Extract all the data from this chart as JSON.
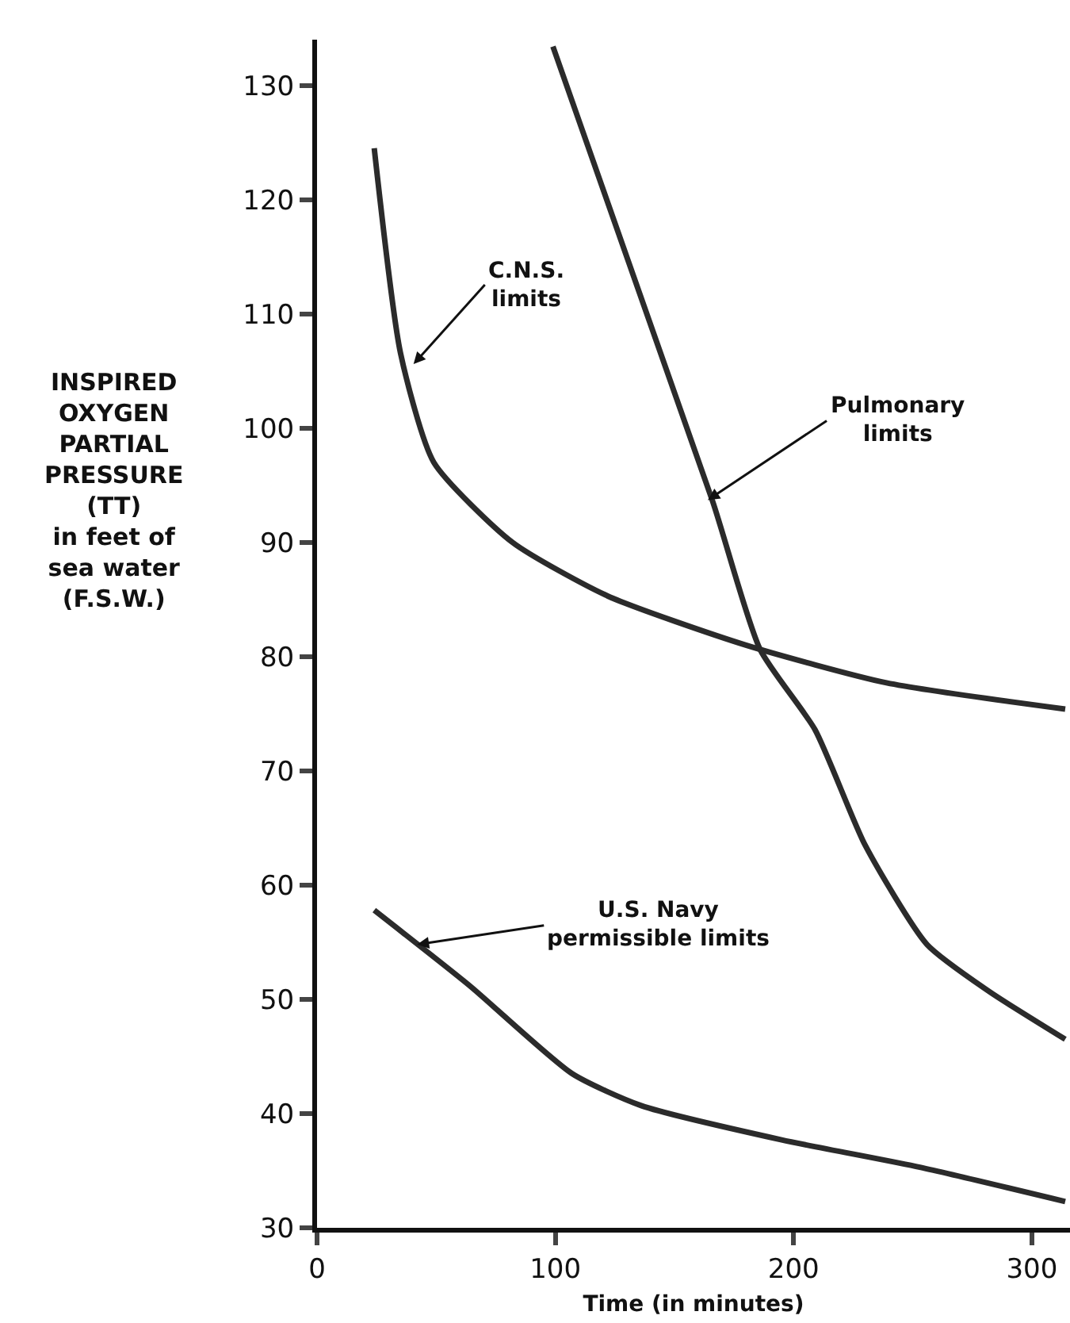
{
  "chart_data": {
    "type": "line",
    "xlabel": "Time (in minutes)",
    "ylabel": "INSPIRED\nOXYGEN\nPARTIAL\nPRESSURE\n(TT)\nin feet of\nsea water\n(F.S.W.)",
    "series": [
      {
        "color": "#2b2b2b",
        "x": [
          24,
          35,
          49,
          82,
          122,
          180,
          239,
          314
        ],
        "values": [
          124.5,
          106.6,
          97,
          90,
          85.3,
          81,
          77.7,
          75.4
        ]
      },
      {
        "color": "#2b2b2b",
        "x": [
          99,
          166,
          186,
          209,
          230,
          256,
          282,
          314
        ],
        "values": [
          133.4,
          93.6,
          80.6,
          73.6,
          63.5,
          54.8,
          50.7,
          46.5
        ]
      },
      {
        "color": "#2b2b2b",
        "x": [
          24,
          64,
          107,
          136,
          195,
          253,
          314
        ],
        "values": [
          57.8,
          51.2,
          43.5,
          40.7,
          37.7,
          35.3,
          32.3
        ]
      }
    ],
    "annotations": [
      {
        "text": "C.N.S.\nlimits",
        "x": 40.5,
        "y": 105.6
      },
      {
        "text": "Pulmonary\nlimits",
        "x": 164,
        "y": 93.7
      },
      {
        "text": "U.S. Navy\npermissible limits",
        "x": 42,
        "y": 54.8
      }
    ],
    "xlim": [
      0,
      316
    ],
    "xticks": [
      0,
      100,
      200,
      300
    ],
    "ylim": [
      30,
      134
    ],
    "yticks": [
      30,
      40,
      50,
      60,
      70,
      80,
      90,
      100,
      110,
      120,
      130
    ],
    "marker": "none",
    "line_style": "solid"
  }
}
